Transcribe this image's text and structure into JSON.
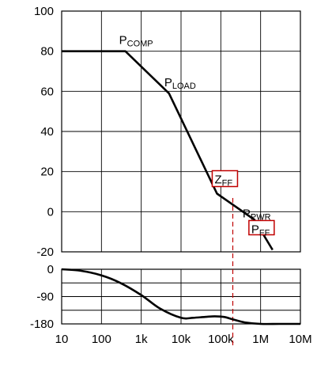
{
  "chart_data": [
    {
      "type": "line",
      "panel": "gain",
      "x_scale": "log",
      "xlim": [
        10,
        10000000
      ],
      "ylim": [
        -20,
        100
      ],
      "y_ticks": [
        "100",
        "80",
        "60",
        "40",
        "20",
        "0",
        "-20"
      ],
      "series": [
        {
          "x": [
            10,
            400,
            5000,
            80000,
            700000,
            2000000
          ],
          "y": [
            80,
            80,
            59,
            9,
            -4,
            -19
          ]
        }
      ],
      "annotations": [
        {
          "main": "P",
          "sub": "COMP",
          "x": 400,
          "y": 80,
          "boxed": false
        },
        {
          "main": "P",
          "sub": "LOAD",
          "x": 5000,
          "y": 59,
          "boxed": false
        },
        {
          "main": "Z",
          "sub": "FF",
          "x": 80000,
          "y": 9,
          "boxed": true
        },
        {
          "main": "P",
          "sub": "PWR",
          "x": 700000,
          "y": -4,
          "boxed": false
        },
        {
          "main": "P",
          "sub": "FF",
          "x": 700000,
          "y": -4,
          "boxed": true
        }
      ],
      "marker_line_x": 200000,
      "colors": {
        "line": "#000000",
        "grid": "#000000",
        "highlight": "#c00000"
      }
    },
    {
      "type": "line",
      "panel": "phase",
      "x_scale": "log",
      "xlim": [
        10,
        10000000
      ],
      "ylim": [
        -180,
        0
      ],
      "y_ticks": [
        "0",
        "-90",
        "-180"
      ],
      "x_ticks": [
        "10",
        "100",
        "1k",
        "10k",
        "100k",
        "1M",
        "10M"
      ],
      "series": [
        {
          "x": [
            10,
            30,
            100,
            300,
            1000,
            3000,
            10000,
            20000,
            40000,
            70000,
            120000,
            200000,
            400000,
            1000000,
            3000000,
            10000000
          ],
          "y": [
            0,
            -5,
            -20,
            -45,
            -85,
            -130,
            -160,
            -160,
            -157,
            -155,
            -157,
            -165,
            -175,
            -180,
            -180,
            -180
          ]
        }
      ]
    }
  ]
}
